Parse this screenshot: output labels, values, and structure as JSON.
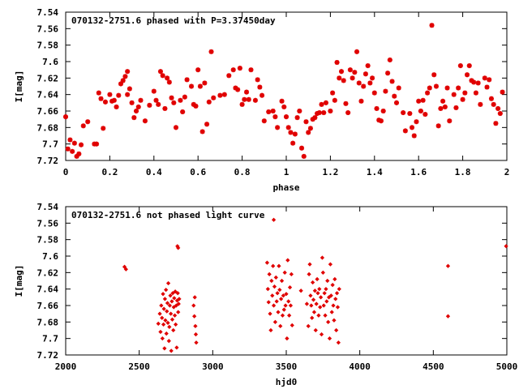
{
  "colors": {
    "points": "#e00000",
    "frame": "#000000",
    "background": "#ffffff"
  },
  "chart_data": [
    {
      "type": "scatter",
      "title": "070132-2751.6 phased with P=3.37450day",
      "xlabel": "phase",
      "ylabel": "I[mag]",
      "xlim": [
        0,
        2
      ],
      "ylim": [
        7.72,
        7.54
      ],
      "y_inverted": true,
      "grid": false,
      "legend": "none",
      "x_ticks": [
        0,
        0.2,
        0.4,
        0.6,
        0.8,
        1,
        1.2,
        1.4,
        1.6,
        1.8,
        2
      ],
      "x_tick_labels": [
        "0",
        "0.2",
        "0.4",
        "0.6",
        "0.8",
        "1",
        "1.2",
        "1.4",
        "1.6",
        "1.8",
        "2"
      ],
      "y_ticks": [
        7.54,
        7.56,
        7.58,
        7.6,
        7.62,
        7.64,
        7.66,
        7.68,
        7.7,
        7.72
      ],
      "y_tick_labels": [
        "7.54",
        "7.56",
        "7.58",
        "7.6",
        "7.62",
        "7.64",
        "7.66",
        "7.68",
        "7.7",
        "7.72"
      ],
      "marker": "star",
      "points": [
        [
          0.0,
          7.667
        ],
        [
          0.01,
          7.706
        ],
        [
          0.02,
          7.695
        ],
        [
          0.03,
          7.709
        ],
        [
          0.04,
          7.699
        ],
        [
          0.05,
          7.715
        ],
        [
          0.06,
          7.712
        ],
        [
          0.07,
          7.701
        ],
        [
          0.08,
          7.678
        ],
        [
          0.1,
          7.673
        ],
        [
          0.13,
          7.7
        ],
        [
          0.14,
          7.7
        ],
        [
          0.17,
          7.681
        ],
        [
          0.15,
          7.638
        ],
        [
          0.16,
          7.645
        ],
        [
          0.18,
          7.649
        ],
        [
          0.2,
          7.64
        ],
        [
          0.21,
          7.648
        ],
        [
          0.22,
          7.647
        ],
        [
          0.23,
          7.655
        ],
        [
          0.24,
          7.641
        ],
        [
          0.25,
          7.627
        ],
        [
          0.26,
          7.623
        ],
        [
          0.27,
          7.618
        ],
        [
          0.28,
          7.612
        ],
        [
          0.28,
          7.64
        ],
        [
          0.29,
          7.633
        ],
        [
          0.3,
          7.65
        ],
        [
          0.31,
          7.668
        ],
        [
          0.32,
          7.66
        ],
        [
          0.33,
          7.655
        ],
        [
          0.34,
          7.647
        ],
        [
          0.36,
          7.672
        ],
        [
          0.38,
          7.653
        ],
        [
          0.4,
          7.636
        ],
        [
          0.41,
          7.647
        ],
        [
          0.42,
          7.652
        ],
        [
          0.43,
          7.612
        ],
        [
          0.44,
          7.617
        ],
        [
          0.45,
          7.657
        ],
        [
          0.46,
          7.62
        ],
        [
          0.47,
          7.625
        ],
        [
          0.48,
          7.644
        ],
        [
          0.49,
          7.65
        ],
        [
          0.5,
          7.68
        ],
        [
          0.52,
          7.647
        ],
        [
          0.53,
          7.661
        ],
        [
          0.54,
          7.643
        ],
        [
          0.55,
          7.622
        ],
        [
          0.57,
          7.63
        ],
        [
          0.58,
          7.652
        ],
        [
          0.59,
          7.654
        ],
        [
          0.6,
          7.61
        ],
        [
          0.61,
          7.63
        ],
        [
          0.62,
          7.685
        ],
        [
          0.63,
          7.626
        ],
        [
          0.64,
          7.676
        ],
        [
          0.65,
          7.649
        ],
        [
          0.66,
          7.588
        ],
        [
          0.67,
          7.644
        ],
        [
          0.7,
          7.641
        ],
        [
          0.72,
          7.64
        ],
        [
          0.74,
          7.617
        ],
        [
          0.76,
          7.61
        ],
        [
          0.77,
          7.632
        ],
        [
          0.78,
          7.634
        ],
        [
          0.79,
          7.608
        ],
        [
          0.8,
          7.652
        ],
        [
          0.81,
          7.646
        ],
        [
          0.82,
          7.637
        ],
        [
          0.83,
          7.646
        ],
        [
          0.84,
          7.61
        ],
        [
          0.86,
          7.647
        ],
        [
          0.87,
          7.622
        ],
        [
          0.88,
          7.631
        ],
        [
          0.89,
          7.641
        ],
        [
          0.9,
          7.672
        ],
        [
          0.92,
          7.661
        ],
        [
          0.94,
          7.66
        ],
        [
          0.95,
          7.667
        ],
        [
          0.96,
          7.68
        ],
        [
          0.98,
          7.648
        ],
        [
          0.99,
          7.655
        ],
        [
          1.0,
          7.667
        ],
        [
          1.01,
          7.68
        ],
        [
          1.02,
          7.686
        ],
        [
          1.03,
          7.699
        ],
        [
          1.04,
          7.688
        ],
        [
          1.05,
          7.668
        ],
        [
          1.06,
          7.66
        ],
        [
          1.07,
          7.705
        ],
        [
          1.08,
          7.715
        ],
        [
          1.09,
          7.673
        ],
        [
          1.1,
          7.686
        ],
        [
          1.11,
          7.681
        ],
        [
          1.12,
          7.67
        ],
        [
          1.13,
          7.668
        ],
        [
          1.14,
          7.663
        ],
        [
          1.15,
          7.662
        ],
        [
          1.16,
          7.652
        ],
        [
          1.17,
          7.662
        ],
        [
          1.18,
          7.65
        ],
        [
          1.2,
          7.66
        ],
        [
          1.21,
          7.638
        ],
        [
          1.22,
          7.647
        ],
        [
          1.23,
          7.601
        ],
        [
          1.24,
          7.62
        ],
        [
          1.25,
          7.612
        ],
        [
          1.26,
          7.623
        ],
        [
          1.27,
          7.651
        ],
        [
          1.28,
          7.662
        ],
        [
          1.29,
          7.61
        ],
        [
          1.3,
          7.62
        ],
        [
          1.31,
          7.613
        ],
        [
          1.32,
          7.588
        ],
        [
          1.33,
          7.626
        ],
        [
          1.34,
          7.648
        ],
        [
          1.35,
          7.63
        ],
        [
          1.36,
          7.615
        ],
        [
          1.37,
          7.605
        ],
        [
          1.38,
          7.626
        ],
        [
          1.39,
          7.62
        ],
        [
          1.4,
          7.638
        ],
        [
          1.41,
          7.657
        ],
        [
          1.42,
          7.671
        ],
        [
          1.43,
          7.672
        ],
        [
          1.44,
          7.66
        ],
        [
          1.45,
          7.636
        ],
        [
          1.46,
          7.614
        ],
        [
          1.47,
          7.598
        ],
        [
          1.48,
          7.624
        ],
        [
          1.49,
          7.642
        ],
        [
          1.5,
          7.65
        ],
        [
          1.51,
          7.632
        ],
        [
          1.53,
          7.662
        ],
        [
          1.54,
          7.684
        ],
        [
          1.56,
          7.663
        ],
        [
          1.57,
          7.68
        ],
        [
          1.58,
          7.69
        ],
        [
          1.59,
          7.673
        ],
        [
          1.6,
          7.648
        ],
        [
          1.61,
          7.66
        ],
        [
          1.62,
          7.647
        ],
        [
          1.63,
          7.664
        ],
        [
          1.64,
          7.638
        ],
        [
          1.65,
          7.632
        ],
        [
          1.66,
          7.556
        ],
        [
          1.67,
          7.616
        ],
        [
          1.68,
          7.63
        ],
        [
          1.69,
          7.678
        ],
        [
          1.7,
          7.657
        ],
        [
          1.71,
          7.648
        ],
        [
          1.72,
          7.655
        ],
        [
          1.73,
          7.632
        ],
        [
          1.74,
          7.672
        ],
        [
          1.76,
          7.64
        ],
        [
          1.77,
          7.656
        ],
        [
          1.78,
          7.632
        ],
        [
          1.79,
          7.605
        ],
        [
          1.8,
          7.646
        ],
        [
          1.81,
          7.638
        ],
        [
          1.82,
          7.616
        ],
        [
          1.83,
          7.605
        ],
        [
          1.84,
          7.623
        ],
        [
          1.85,
          7.625
        ],
        [
          1.86,
          7.638
        ],
        [
          1.87,
          7.626
        ],
        [
          1.88,
          7.652
        ],
        [
          1.9,
          7.62
        ],
        [
          1.91,
          7.631
        ],
        [
          1.92,
          7.622
        ],
        [
          1.93,
          7.645
        ],
        [
          1.94,
          7.652
        ],
        [
          1.95,
          7.675
        ],
        [
          1.96,
          7.657
        ],
        [
          1.97,
          7.663
        ],
        [
          1.98,
          7.637
        ]
      ]
    },
    {
      "type": "scatter",
      "title": "070132-2751.6 not phased light curve",
      "xlabel": "hjd0",
      "ylabel": "I[mag]",
      "xlim": [
        2000,
        5000
      ],
      "ylim": [
        7.72,
        7.54
      ],
      "y_inverted": true,
      "grid": false,
      "legend": "none",
      "x_ticks": [
        2000,
        2500,
        3000,
        3500,
        4000,
        4500,
        5000
      ],
      "x_tick_labels": [
        "2000",
        "2500",
        "3000",
        "3500",
        "4000",
        "4500",
        "5000"
      ],
      "y_ticks": [
        7.54,
        7.56,
        7.58,
        7.6,
        7.62,
        7.64,
        7.66,
        7.68,
        7.7,
        7.72
      ],
      "y_tick_labels": [
        "7.54",
        "7.56",
        "7.58",
        "7.6",
        "7.62",
        "7.64",
        "7.66",
        "7.68",
        "7.7",
        "7.72"
      ],
      "marker": "diamond",
      "points": [
        [
          2400,
          7.613
        ],
        [
          2410,
          7.616
        ],
        [
          2765,
          7.59
        ],
        [
          2760,
          7.588
        ],
        [
          4995,
          7.588
        ],
        [
          4600,
          7.612
        ],
        [
          4600,
          7.673
        ],
        [
          3415,
          7.556
        ],
        [
          2630,
          7.682
        ],
        [
          2640,
          7.67
        ],
        [
          2645,
          7.692
        ],
        [
          2650,
          7.66
        ],
        [
          2655,
          7.675
        ],
        [
          2658,
          7.7
        ],
        [
          2662,
          7.646
        ],
        [
          2665,
          7.683
        ],
        [
          2668,
          7.664
        ],
        [
          2672,
          7.712
        ],
        [
          2675,
          7.652
        ],
        [
          2678,
          7.678
        ],
        [
          2682,
          7.641
        ],
        [
          2685,
          7.694
        ],
        [
          2688,
          7.667
        ],
        [
          2692,
          7.657
        ],
        [
          2695,
          7.681
        ],
        [
          2698,
          7.633
        ],
        [
          2702,
          7.703
        ],
        [
          2705,
          7.686
        ],
        [
          2708,
          7.66
        ],
        [
          2712,
          7.648
        ],
        [
          2715,
          7.67
        ],
        [
          2718,
          7.715
        ],
        [
          2722,
          7.655
        ],
        [
          2725,
          7.677
        ],
        [
          2728,
          7.645
        ],
        [
          2732,
          7.69
        ],
        [
          2735,
          7.662
        ],
        [
          2738,
          7.651
        ],
        [
          2742,
          7.672
        ],
        [
          2745,
          7.643
        ],
        [
          2748,
          7.683
        ],
        [
          2752,
          7.66
        ],
        [
          2755,
          7.711
        ],
        [
          2758,
          7.654
        ],
        [
          2762,
          7.645
        ],
        [
          2765,
          7.668
        ],
        [
          2768,
          7.658
        ],
        [
          2772,
          7.652
        ],
        [
          2870,
          7.66
        ],
        [
          2875,
          7.673
        ],
        [
          2878,
          7.65
        ],
        [
          2882,
          7.685
        ],
        [
          2885,
          7.695
        ],
        [
          2888,
          7.705
        ],
        [
          3370,
          7.608
        ],
        [
          3375,
          7.64
        ],
        [
          3380,
          7.656
        ],
        [
          3385,
          7.622
        ],
        [
          3390,
          7.67
        ],
        [
          3395,
          7.69
        ],
        [
          3400,
          7.63
        ],
        [
          3405,
          7.648
        ],
        [
          3410,
          7.612
        ],
        [
          3415,
          7.66
        ],
        [
          3420,
          7.637
        ],
        [
          3425,
          7.68
        ],
        [
          3430,
          7.626
        ],
        [
          3435,
          7.655
        ],
        [
          3440,
          7.645
        ],
        [
          3445,
          7.668
        ],
        [
          3450,
          7.612
        ],
        [
          3455,
          7.641
        ],
        [
          3460,
          7.685
        ],
        [
          3465,
          7.652
        ],
        [
          3470,
          7.63
        ],
        [
          3475,
          7.672
        ],
        [
          3480,
          7.648
        ],
        [
          3485,
          7.665
        ],
        [
          3490,
          7.62
        ],
        [
          3495,
          7.66
        ],
        [
          3500,
          7.646
        ],
        [
          3505,
          7.7
        ],
        [
          3510,
          7.605
        ],
        [
          3515,
          7.655
        ],
        [
          3520,
          7.672
        ],
        [
          3525,
          7.638
        ],
        [
          3530,
          7.66
        ],
        [
          3535,
          7.622
        ],
        [
          3540,
          7.684
        ],
        [
          3600,
          7.642
        ],
        [
          3640,
          7.658
        ],
        [
          3650,
          7.685
        ],
        [
          3655,
          7.622
        ],
        [
          3660,
          7.61
        ],
        [
          3665,
          7.648
        ],
        [
          3670,
          7.66
        ],
        [
          3675,
          7.675
        ],
        [
          3680,
          7.632
        ],
        [
          3685,
          7.653
        ],
        [
          3690,
          7.668
        ],
        [
          3695,
          7.642
        ],
        [
          3700,
          7.69
        ],
        [
          3705,
          7.658
        ],
        [
          3710,
          7.628
        ],
        [
          3715,
          7.645
        ],
        [
          3720,
          7.672
        ],
        [
          3725,
          7.64
        ],
        [
          3730,
          7.662
        ],
        [
          3735,
          7.65
        ],
        [
          3740,
          7.695
        ],
        [
          3745,
          7.602
        ],
        [
          3750,
          7.62
        ],
        [
          3755,
          7.66
        ],
        [
          3760,
          7.645
        ],
        [
          3765,
          7.672
        ],
        [
          3770,
          7.64
        ],
        [
          3775,
          7.655
        ],
        [
          3780,
          7.63
        ],
        [
          3785,
          7.68
        ],
        [
          3790,
          7.65
        ],
        [
          3795,
          7.7
        ],
        [
          3800,
          7.61
        ],
        [
          3805,
          7.648
        ],
        [
          3810,
          7.668
        ],
        [
          3815,
          7.635
        ],
        [
          3820,
          7.66
        ],
        [
          3825,
          7.678
        ],
        [
          3830,
          7.628
        ],
        [
          3835,
          7.652
        ],
        [
          3840,
          7.69
        ],
        [
          3845,
          7.645
        ],
        [
          3850,
          7.662
        ],
        [
          3855,
          7.705
        ],
        [
          3860,
          7.64
        ]
      ]
    }
  ]
}
